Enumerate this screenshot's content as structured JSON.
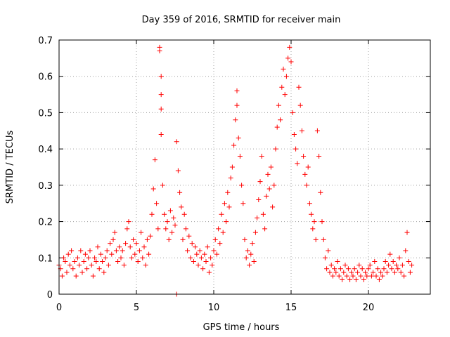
{
  "chart_data": {
    "type": "scatter",
    "title": "Day 359 of 2016, SRMTID for receiver main",
    "xlabel": "GPS time / hours",
    "ylabel": "SRMTID / TECUs",
    "xlim": [
      0,
      24
    ],
    "ylim": [
      0,
      0.7
    ],
    "xticks": [
      0,
      5,
      10,
      15,
      20
    ],
    "xtick_labels": [
      "0",
      "5",
      "10",
      "15",
      "20"
    ],
    "yticks": [
      0,
      0.1,
      0.2,
      0.3,
      0.4,
      0.5,
      0.6,
      0.7
    ],
    "ytick_labels": [
      "0",
      "0.1",
      "0.2",
      "0.3",
      "0.4",
      "0.5",
      "0.6",
      "0.7"
    ],
    "grid": true,
    "marker": "+",
    "color": "#ff0000",
    "series": [
      {
        "name": "SRMTID",
        "points": [
          [
            0.0,
            0.08
          ],
          [
            0.1,
            0.07
          ],
          [
            0.2,
            0.05
          ],
          [
            0.3,
            0.1
          ],
          [
            0.4,
            0.09
          ],
          [
            0.5,
            0.06
          ],
          [
            0.6,
            0.11
          ],
          [
            0.7,
            0.08
          ],
          [
            0.8,
            0.12
          ],
          [
            0.9,
            0.07
          ],
          [
            1.0,
            0.09
          ],
          [
            1.1,
            0.05
          ],
          [
            1.2,
            0.1
          ],
          [
            1.3,
            0.08
          ],
          [
            1.4,
            0.12
          ],
          [
            1.5,
            0.06
          ],
          [
            1.6,
            0.09
          ],
          [
            1.7,
            0.11
          ],
          [
            1.8,
            0.07
          ],
          [
            1.9,
            0.1
          ],
          [
            2.0,
            0.12
          ],
          [
            2.1,
            0.08
          ],
          [
            2.2,
            0.05
          ],
          [
            2.3,
            0.1
          ],
          [
            2.4,
            0.09
          ],
          [
            2.5,
            0.13
          ],
          [
            2.6,
            0.07
          ],
          [
            2.7,
            0.11
          ],
          [
            2.8,
            0.09
          ],
          [
            2.9,
            0.06
          ],
          [
            3.0,
            0.1
          ],
          [
            3.1,
            0.12
          ],
          [
            3.2,
            0.08
          ],
          [
            3.3,
            0.14
          ],
          [
            3.4,
            0.11
          ],
          [
            3.5,
            0.15
          ],
          [
            3.6,
            0.17
          ],
          [
            3.7,
            0.12
          ],
          [
            3.8,
            0.09
          ],
          [
            3.9,
            0.13
          ],
          [
            4.0,
            0.1
          ],
          [
            4.1,
            0.12
          ],
          [
            4.2,
            0.08
          ],
          [
            4.3,
            0.14
          ],
          [
            4.4,
            0.18
          ],
          [
            4.5,
            0.2
          ],
          [
            4.6,
            0.13
          ],
          [
            4.7,
            0.1
          ],
          [
            4.8,
            0.15
          ],
          [
            4.9,
            0.11
          ],
          [
            5.0,
            0.14
          ],
          [
            5.1,
            0.09
          ],
          [
            5.2,
            0.12
          ],
          [
            5.3,
            0.17
          ],
          [
            5.4,
            0.1
          ],
          [
            5.5,
            0.13
          ],
          [
            5.6,
            0.08
          ],
          [
            5.7,
            0.15
          ],
          [
            5.8,
            0.11
          ],
          [
            5.9,
            0.16
          ],
          [
            6.0,
            0.22
          ],
          [
            6.1,
            0.29
          ],
          [
            6.2,
            0.37
          ],
          [
            6.3,
            0.25
          ],
          [
            6.4,
            0.18
          ],
          [
            6.5,
            0.68
          ],
          [
            6.5,
            0.67
          ],
          [
            6.6,
            0.6
          ],
          [
            6.6,
            0.55
          ],
          [
            6.6,
            0.51
          ],
          [
            6.6,
            0.44
          ],
          [
            6.7,
            0.3
          ],
          [
            6.8,
            0.22
          ],
          [
            6.9,
            0.18
          ],
          [
            7.0,
            0.2
          ],
          [
            7.1,
            0.15
          ],
          [
            7.2,
            0.23
          ],
          [
            7.3,
            0.17
          ],
          [
            7.4,
            0.21
          ],
          [
            7.5,
            0.19
          ],
          [
            7.6,
            0.42
          ],
          [
            7.7,
            0.34
          ],
          [
            7.8,
            0.28
          ],
          [
            7.9,
            0.24
          ],
          [
            8.0,
            0.15
          ],
          [
            8.1,
            0.22
          ],
          [
            8.2,
            0.18
          ],
          [
            8.3,
            0.12
          ],
          [
            8.4,
            0.16
          ],
          [
            8.5,
            0.1
          ],
          [
            8.6,
            0.14
          ],
          [
            8.7,
            0.09
          ],
          [
            8.8,
            0.13
          ],
          [
            8.9,
            0.11
          ],
          [
            9.0,
            0.08
          ],
          [
            9.1,
            0.12
          ],
          [
            9.2,
            0.1
          ],
          [
            9.3,
            0.07
          ],
          [
            9.4,
            0.11
          ],
          [
            9.5,
            0.09
          ],
          [
            9.6,
            0.13
          ],
          [
            9.7,
            0.06
          ],
          [
            9.8,
            0.1
          ],
          [
            9.9,
            0.08
          ],
          [
            10.0,
            0.12
          ],
          [
            10.1,
            0.15
          ],
          [
            10.2,
            0.11
          ],
          [
            10.3,
            0.18
          ],
          [
            10.4,
            0.14
          ],
          [
            10.5,
            0.22
          ],
          [
            10.6,
            0.17
          ],
          [
            10.7,
            0.25
          ],
          [
            10.8,
            0.2
          ],
          [
            10.9,
            0.28
          ],
          [
            11.0,
            0.24
          ],
          [
            11.1,
            0.32
          ],
          [
            11.2,
            0.35
          ],
          [
            11.3,
            0.41
          ],
          [
            11.4,
            0.48
          ],
          [
            11.5,
            0.56
          ],
          [
            11.5,
            0.52
          ],
          [
            11.6,
            0.43
          ],
          [
            11.7,
            0.38
          ],
          [
            11.8,
            0.3
          ],
          [
            11.9,
            0.25
          ],
          [
            12.0,
            0.15
          ],
          [
            12.1,
            0.1
          ],
          [
            12.2,
            0.12
          ],
          [
            12.3,
            0.08
          ],
          [
            12.4,
            0.11
          ],
          [
            12.5,
            0.14
          ],
          [
            12.6,
            0.09
          ],
          [
            12.7,
            0.17
          ],
          [
            12.8,
            0.21
          ],
          [
            12.9,
            0.26
          ],
          [
            13.0,
            0.31
          ],
          [
            13.1,
            0.38
          ],
          [
            13.2,
            0.22
          ],
          [
            13.3,
            0.18
          ],
          [
            13.4,
            0.27
          ],
          [
            13.5,
            0.33
          ],
          [
            13.6,
            0.29
          ],
          [
            13.7,
            0.35
          ],
          [
            13.8,
            0.24
          ],
          [
            13.9,
            0.3
          ],
          [
            14.0,
            0.4
          ],
          [
            14.1,
            0.46
          ],
          [
            14.2,
            0.52
          ],
          [
            14.3,
            0.48
          ],
          [
            14.4,
            0.57
          ],
          [
            14.5,
            0.62
          ],
          [
            14.6,
            0.55
          ],
          [
            14.7,
            0.6
          ],
          [
            14.8,
            0.65
          ],
          [
            14.9,
            0.68
          ],
          [
            15.0,
            0.64
          ],
          [
            15.1,
            0.5
          ],
          [
            15.2,
            0.44
          ],
          [
            15.3,
            0.4
          ],
          [
            15.4,
            0.36
          ],
          [
            15.5,
            0.57
          ],
          [
            15.6,
            0.52
          ],
          [
            15.7,
            0.45
          ],
          [
            15.8,
            0.38
          ],
          [
            15.9,
            0.33
          ],
          [
            16.0,
            0.3
          ],
          [
            16.1,
            0.35
          ],
          [
            16.2,
            0.25
          ],
          [
            16.3,
            0.22
          ],
          [
            16.4,
            0.18
          ],
          [
            16.5,
            0.2
          ],
          [
            16.6,
            0.15
          ],
          [
            16.7,
            0.45
          ],
          [
            16.8,
            0.38
          ],
          [
            16.9,
            0.28
          ],
          [
            17.0,
            0.2
          ],
          [
            17.1,
            0.15
          ],
          [
            17.2,
            0.1
          ],
          [
            17.3,
            0.07
          ],
          [
            17.4,
            0.12
          ],
          [
            17.5,
            0.06
          ],
          [
            17.6,
            0.08
          ],
          [
            17.7,
            0.05
          ],
          [
            17.8,
            0.07
          ],
          [
            17.9,
            0.06
          ],
          [
            18.0,
            0.09
          ],
          [
            18.1,
            0.05
          ],
          [
            18.2,
            0.07
          ],
          [
            18.3,
            0.04
          ],
          [
            18.4,
            0.06
          ],
          [
            18.5,
            0.08
          ],
          [
            18.6,
            0.05
          ],
          [
            18.7,
            0.07
          ],
          [
            18.8,
            0.04
          ],
          [
            18.9,
            0.06
          ],
          [
            19.0,
            0.05
          ],
          [
            19.1,
            0.07
          ],
          [
            19.2,
            0.04
          ],
          [
            19.3,
            0.06
          ],
          [
            19.4,
            0.08
          ],
          [
            19.5,
            0.05
          ],
          [
            19.6,
            0.07
          ],
          [
            19.7,
            0.04
          ],
          [
            19.8,
            0.06
          ],
          [
            19.9,
            0.05
          ],
          [
            20.0,
            0.07
          ],
          [
            20.1,
            0.08
          ],
          [
            20.2,
            0.05
          ],
          [
            20.3,
            0.06
          ],
          [
            20.4,
            0.09
          ],
          [
            20.5,
            0.05
          ],
          [
            20.6,
            0.07
          ],
          [
            20.7,
            0.04
          ],
          [
            20.8,
            0.06
          ],
          [
            20.9,
            0.05
          ],
          [
            21.0,
            0.07
          ],
          [
            21.1,
            0.09
          ],
          [
            21.2,
            0.06
          ],
          [
            21.3,
            0.08
          ],
          [
            21.4,
            0.11
          ],
          [
            21.5,
            0.07
          ],
          [
            21.6,
            0.09
          ],
          [
            21.7,
            0.06
          ],
          [
            21.8,
            0.08
          ],
          [
            21.9,
            0.07
          ],
          [
            22.0,
            0.1
          ],
          [
            22.1,
            0.06
          ],
          [
            22.2,
            0.08
          ],
          [
            22.3,
            0.05
          ],
          [
            22.4,
            0.12
          ],
          [
            22.5,
            0.17
          ],
          [
            22.6,
            0.09
          ],
          [
            22.7,
            0.06
          ],
          [
            22.8,
            0.08
          ],
          [
            7.6,
            0.0
          ]
        ]
      }
    ]
  }
}
